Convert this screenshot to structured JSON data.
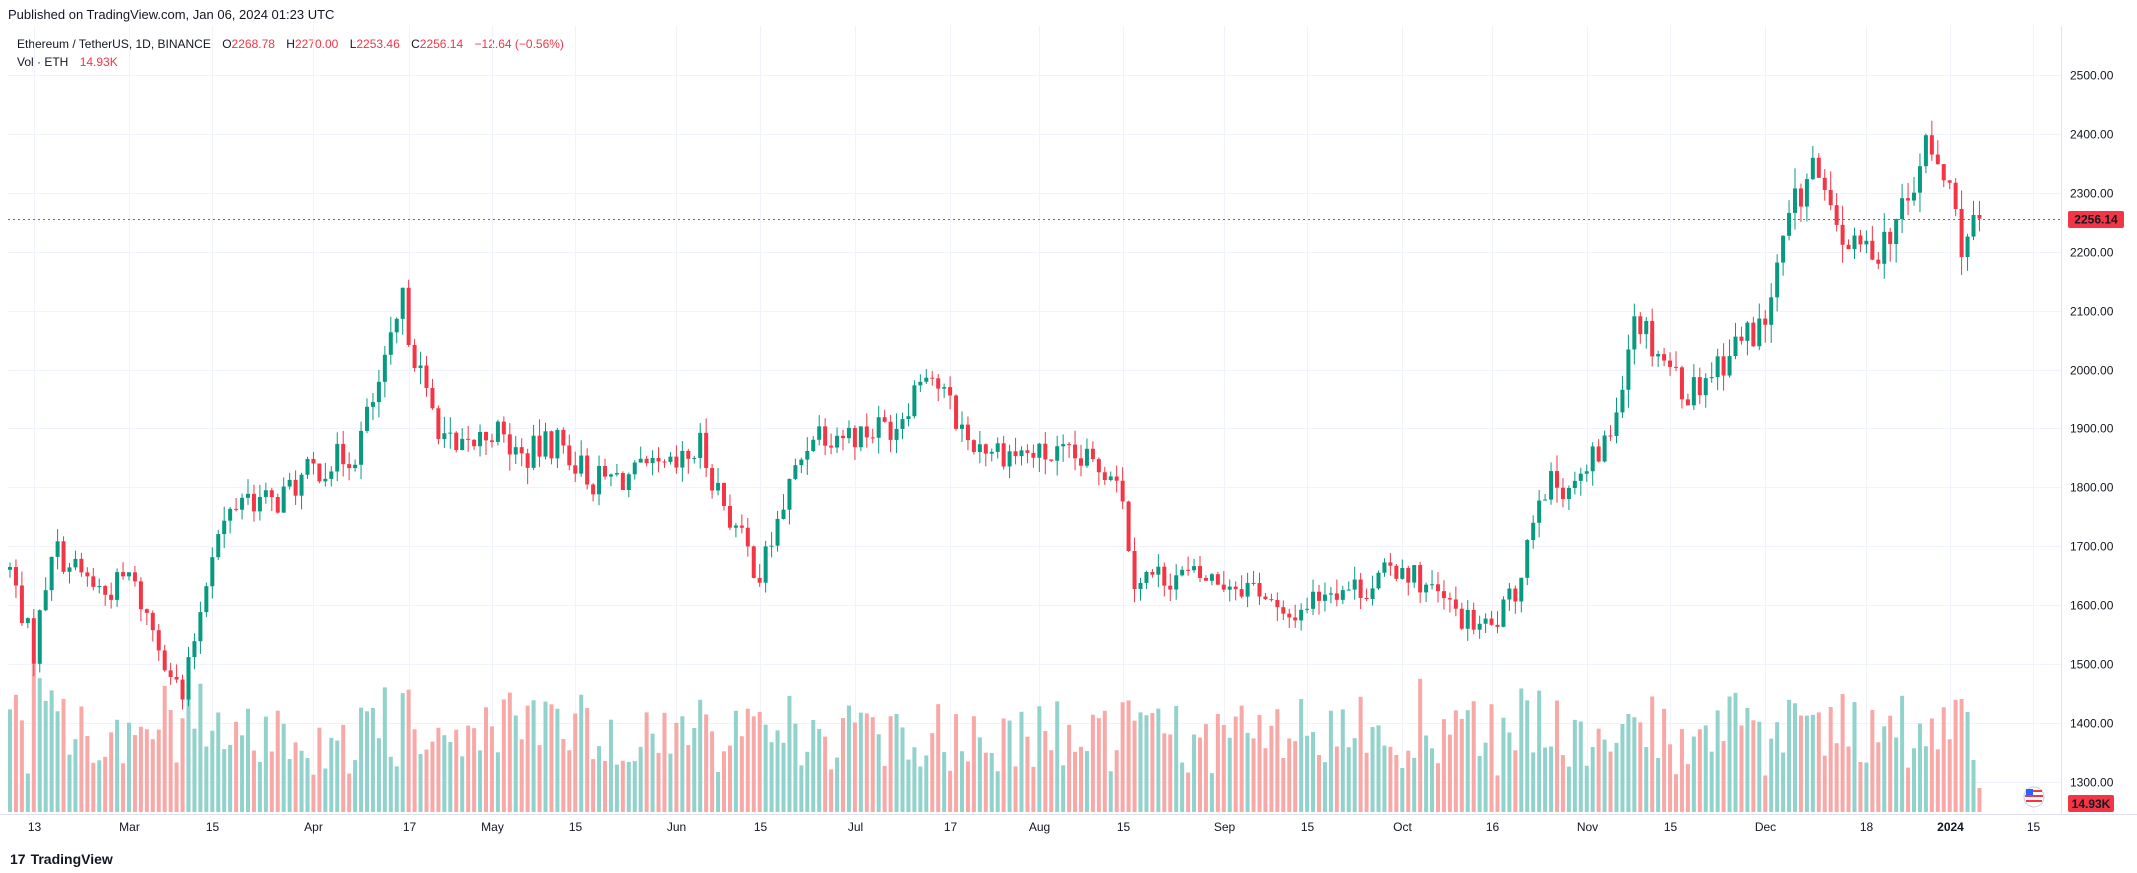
{
  "header": {
    "published": "Published on TradingView.com, Jan 06, 2024 01:23 UTC"
  },
  "legend": {
    "symbol": "Ethereum / TetherUS, 1D, BINANCE",
    "open_label": "O",
    "open": "2268.78",
    "high_label": "H",
    "high": "2270.00",
    "low_label": "L",
    "low": "2253.46",
    "close_label": "C",
    "close": "2256.14",
    "change": "−12.64 (−0.56%)",
    "vol_label": "Vol · ETH",
    "vol_value": "14.93K"
  },
  "colors": {
    "up": "#089981",
    "down": "#f23645",
    "up_vol": "#92d2cc",
    "down_vol": "#f7a9a7",
    "grid": "#f0f3fa",
    "last_line": "#f23645"
  },
  "footer": {
    "brand": "TradingView",
    "logo_icon": "tradingview-logo-icon"
  },
  "chart_data": {
    "type": "candlestick",
    "symbol": "ETHUSDT",
    "interval": "1D",
    "exchange": "BINANCE",
    "ylim": [
      1400,
      2540
    ],
    "y_ticks": [
      2500,
      2400,
      2300,
      2200,
      2100,
      2000,
      1900,
      1800,
      1700,
      1600,
      1500,
      1400,
      1300
    ],
    "y_tick_labels": [
      "2500.00",
      "2400.00",
      "2300.00",
      "2200.00",
      "2100.00",
      "2000.00",
      "1900.00",
      "1800.00",
      "1700.00",
      "1600.00",
      "1500.00",
      "1400.00",
      "1300.00"
    ],
    "last_price": 2256.14,
    "last_price_label": "2256.14",
    "volume_badge": "14.93K",
    "x_ticks": [
      {
        "label": "13",
        "date": "2023-02-13"
      },
      {
        "label": "Mar",
        "date": "2023-03-01"
      },
      {
        "label": "15",
        "date": "2023-03-15"
      },
      {
        "label": "Apr",
        "date": "2023-04-01"
      },
      {
        "label": "17",
        "date": "2023-04-17"
      },
      {
        "label": "May",
        "date": "2023-05-01"
      },
      {
        "label": "15",
        "date": "2023-05-15"
      },
      {
        "label": "Jun",
        "date": "2023-06-01"
      },
      {
        "label": "15",
        "date": "2023-06-15"
      },
      {
        "label": "Jul",
        "date": "2023-07-01"
      },
      {
        "label": "17",
        "date": "2023-07-17"
      },
      {
        "label": "Aug",
        "date": "2023-08-01"
      },
      {
        "label": "15",
        "date": "2023-08-15"
      },
      {
        "label": "Sep",
        "date": "2023-09-01"
      },
      {
        "label": "15",
        "date": "2023-09-15"
      },
      {
        "label": "Oct",
        "date": "2023-10-01"
      },
      {
        "label": "16",
        "date": "2023-10-16"
      },
      {
        "label": "Nov",
        "date": "2023-11-01"
      },
      {
        "label": "15",
        "date": "2023-11-15"
      },
      {
        "label": "Dec",
        "date": "2023-12-01"
      },
      {
        "label": "18",
        "date": "2023-12-18"
      },
      {
        "label": "2024",
        "date": "2024-01-01"
      },
      {
        "label": "15",
        "date": "2024-01-15"
      }
    ],
    "close_path_dates": [
      "2023-02-09",
      "2023-02-13",
      "2023-02-16",
      "2023-02-20",
      "2023-02-25",
      "2023-03-01",
      "2023-03-05",
      "2023-03-10",
      "2023-03-15",
      "2023-03-20",
      "2023-03-25",
      "2023-04-01",
      "2023-04-08",
      "2023-04-13",
      "2023-04-16",
      "2023-04-20",
      "2023-04-25",
      "2023-05-01",
      "2023-05-06",
      "2023-05-12",
      "2023-05-18",
      "2023-05-25",
      "2023-06-01",
      "2023-06-05",
      "2023-06-10",
      "2023-06-15",
      "2023-06-20",
      "2023-06-24",
      "2023-07-01",
      "2023-07-08",
      "2023-07-13",
      "2023-07-20",
      "2023-07-27",
      "2023-08-05",
      "2023-08-14",
      "2023-08-17",
      "2023-08-25",
      "2023-09-01",
      "2023-09-07",
      "2023-09-11",
      "2023-09-18",
      "2023-09-25",
      "2023-10-01",
      "2023-10-04",
      "2023-10-12",
      "2023-10-16",
      "2023-10-20",
      "2023-10-24",
      "2023-10-31",
      "2023-11-05",
      "2023-11-09",
      "2023-11-12",
      "2023-11-18",
      "2023-11-22",
      "2023-11-27",
      "2023-12-01",
      "2023-12-05",
      "2023-12-09",
      "2023-12-12",
      "2023-12-16",
      "2023-12-20",
      "2023-12-25",
      "2023-12-28",
      "2024-01-01",
      "2024-01-03",
      "2024-01-06"
    ],
    "close_path_values": [
      1660,
      1520,
      1700,
      1660,
      1620,
      1650,
      1560,
      1440,
      1700,
      1790,
      1770,
      1830,
      1860,
      2000,
      2110,
      1950,
      1850,
      1900,
      1850,
      1880,
      1810,
      1820,
      1830,
      1870,
      1750,
      1650,
      1800,
      1900,
      1890,
      1910,
      2010,
      1880,
      1860,
      1850,
      1830,
      1650,
      1650,
      1640,
      1630,
      1570,
      1630,
      1630,
      1670,
      1640,
      1570,
      1560,
      1620,
      1800,
      1810,
      1890,
      2100,
      2050,
      1960,
      2000,
      2050,
      2080,
      2250,
      2350,
      2250,
      2200,
      2210,
      2280,
      2380,
      2300,
      2220,
      2256
    ]
  }
}
